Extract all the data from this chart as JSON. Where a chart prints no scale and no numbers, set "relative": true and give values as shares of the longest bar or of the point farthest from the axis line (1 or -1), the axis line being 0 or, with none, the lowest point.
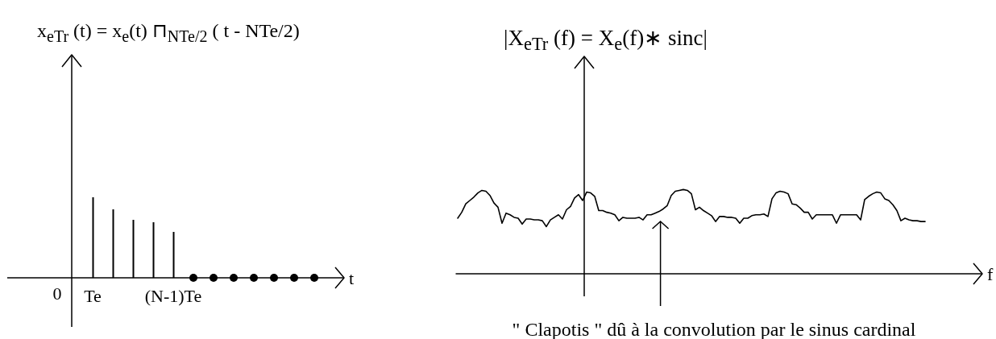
{
  "chart_data": [
    {
      "type": "bar",
      "title": "x$_{eTr}$ (t) = x$_{e}$(t) ⊓$_{NTe/2}$ ( t - NTe/2)",
      "xlabel": "t",
      "relative": true,
      "categories": [
        "Te",
        null,
        null,
        null,
        "(N-1)Te",
        null,
        null,
        null,
        null,
        null,
        null,
        null
      ],
      "series": [
        {
          "color": "#000000",
          "values": [
            1,
            0.85,
            0.72,
            0.69,
            0.57,
            null,
            null,
            null,
            null,
            null,
            null,
            null
          ]
        },
        {
          "type": "scatter",
          "color": "#000000",
          "marker": "circle",
          "values": [
            null,
            null,
            null,
            null,
            null,
            0,
            0,
            0,
            0,
            0,
            0,
            0
          ]
        }
      ],
      "annotations": [
        "0"
      ]
    },
    {
      "type": "line",
      "title": "|X$_{eTr}$ (f) = X$_{e}$(f)∗ sinc|",
      "xlabel": "f",
      "relative": true,
      "categories": [
        null,
        null,
        null,
        null,
        null,
        null,
        null,
        null,
        null,
        null,
        null,
        null,
        null,
        null,
        null,
        null,
        null,
        null,
        null,
        null,
        null,
        null,
        null,
        null,
        null,
        null,
        null,
        null,
        null,
        null,
        null,
        null,
        null,
        null,
        null,
        null,
        null,
        null,
        null,
        null,
        null,
        null,
        null,
        null,
        null,
        null,
        null,
        null,
        null,
        null,
        null,
        null,
        null,
        null,
        null,
        null,
        null,
        null,
        null,
        null,
        null,
        null,
        null,
        null,
        null,
        null,
        null,
        null,
        null,
        null,
        null,
        null,
        null,
        null,
        null,
        null,
        null,
        null,
        null,
        null,
        null,
        null,
        null,
        null,
        null,
        null,
        null,
        null,
        null,
        null,
        null,
        null,
        null,
        null,
        null,
        null,
        null,
        null,
        null,
        null,
        null,
        null,
        null,
        null,
        null,
        null,
        null,
        null,
        null,
        null,
        null,
        null,
        null,
        null,
        null,
        null,
        null
      ],
      "series": [
        {
          "color": "#000000",
          "values": [
            0.66,
            0.73,
            0.83,
            0.87,
            0.91,
            0.96,
            0.99,
            0.98,
            0.93,
            0.84,
            0.79,
            0.6,
            0.72,
            0.7,
            0.67,
            0.66,
            0.59,
            0.65,
            0.65,
            0.64,
            0.64,
            0.63,
            0.56,
            0.64,
            0.67,
            0.7,
            0.65,
            0.76,
            0.8,
            0.9,
            0.94,
            0.87,
            0.97,
            0.96,
            0.92,
            0.75,
            0.75,
            0.73,
            0.72,
            0.7,
            0.63,
            0.67,
            0.66,
            0.66,
            0.66,
            0.67,
            0.64,
            0.7,
            0.7,
            0.72,
            0.74,
            0.77,
            0.81,
            0.93,
            0.98,
            0.99,
            1,
            0.99,
            0.95,
            0.76,
            0.79,
            0.75,
            0.72,
            0.69,
            0.62,
            0.68,
            0.68,
            0.67,
            0.67,
            0.66,
            0.6,
            0.66,
            0.66,
            0.69,
            0.7,
            0.7,
            0.71,
            0.68,
            0.89,
            0.96,
            0.98,
            0.97,
            0.95,
            0.83,
            0.82,
            0.78,
            0.73,
            0.73,
            0.65,
            0.7,
            0.7,
            0.7,
            0.7,
            0.7,
            0.6,
            0.7,
            0.7,
            0.7,
            0.7,
            0.7,
            0.64,
            0.88,
            0.92,
            0.95,
            0.97,
            0.96,
            0.89,
            0.87,
            0.82,
            0.75,
            0.63,
            0.66,
            0.64,
            0.63,
            0.63,
            0.62,
            0.62
          ]
        }
      ],
      "annotations": [
        "\" Clapotis \" dû à la convolution par le sinus cardinal"
      ]
    }
  ]
}
